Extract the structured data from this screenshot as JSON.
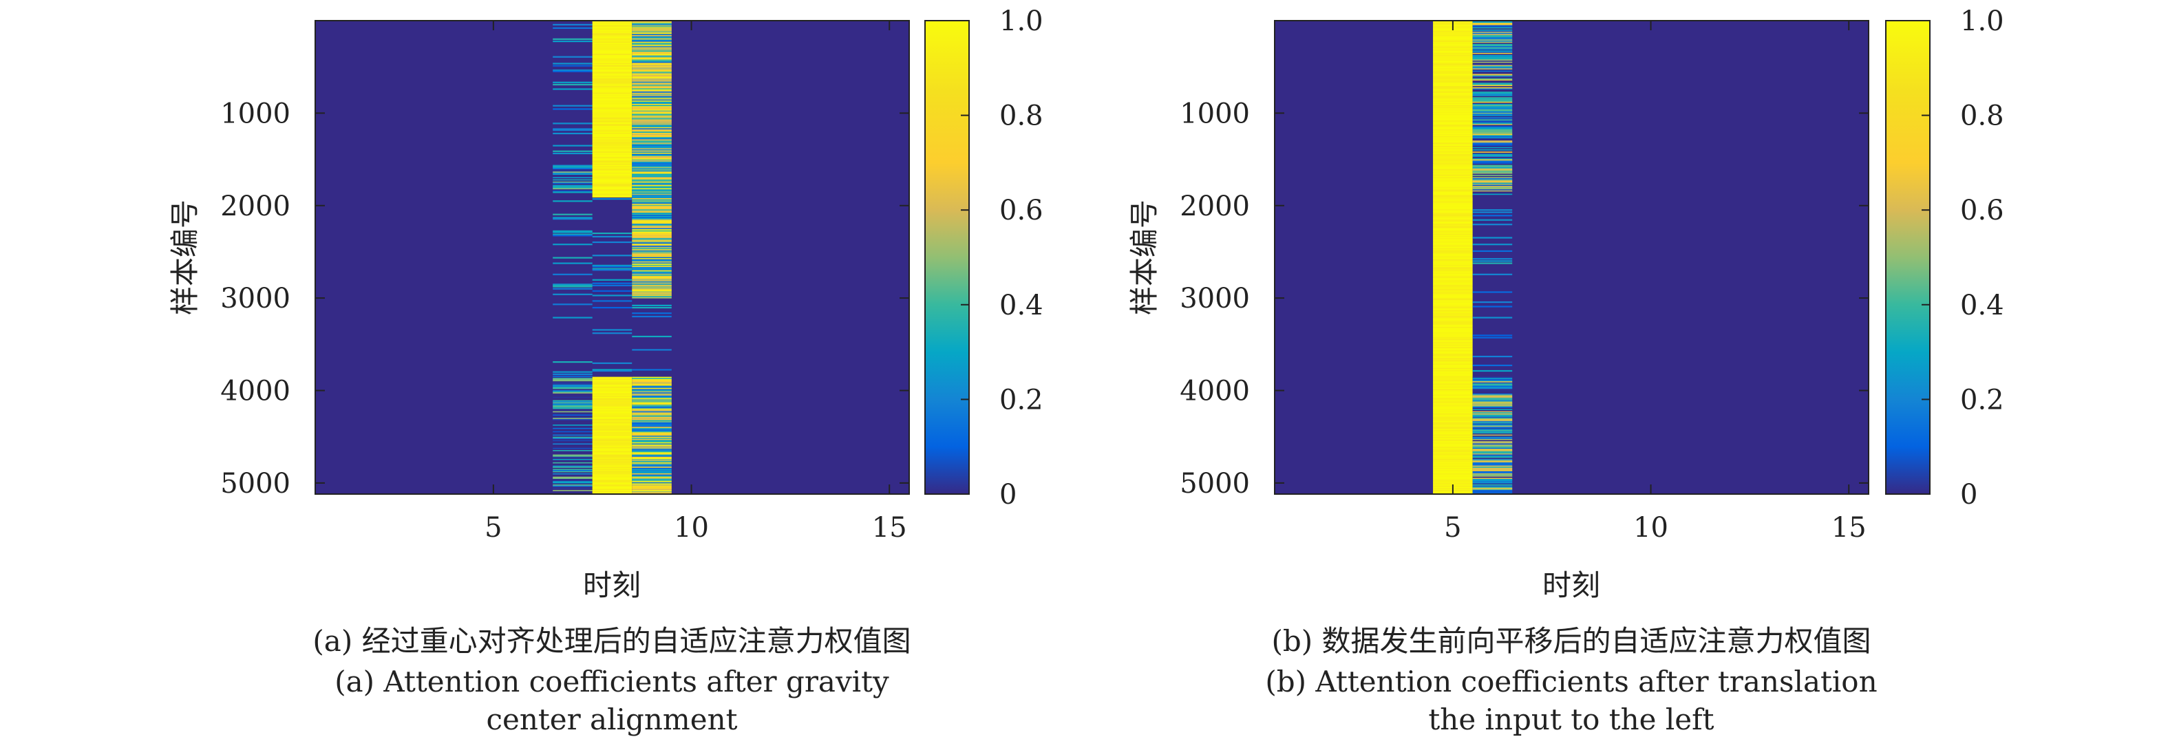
{
  "chart_data": [
    {
      "type": "heatmap",
      "xlabel": "时刻",
      "ylabel": "样本编号",
      "x_ticks": [
        5,
        10,
        15
      ],
      "y_ticks": [
        1000,
        2000,
        3000,
        4000,
        5000
      ],
      "xlim": [
        0.5,
        15.5
      ],
      "ylim": [
        0,
        5120
      ],
      "y_reversed": true,
      "colorbar": {
        "min": 0,
        "max": 1,
        "ticks": [
          "0",
          "0.2",
          "0.4",
          "0.6",
          "0.8",
          "1.0"
        ],
        "colormap": "parula"
      },
      "background_value": 0.08,
      "columns": [
        {
          "timestep": 7,
          "mean_value": 0.12,
          "dense_rows": [
            [
              3850,
              5120
            ],
            [
              1550,
              1850
            ]
          ]
        },
        {
          "timestep": 8,
          "mean_value": 0.97,
          "dense_rows": [
            [
              0,
              1900
            ],
            [
              3850,
              5120
            ]
          ]
        },
        {
          "timestep": 9,
          "mean_value": 0.55,
          "dense_rows": [
            [
              0,
              1900
            ],
            [
              1900,
              3000
            ],
            [
              3850,
              5120
            ]
          ]
        }
      ],
      "caption_zh": "(a) 经过重心对齐处理后的自适应注意力权值图",
      "caption_en": [
        "(a) Attention coefficients after gravity",
        "center alignment"
      ]
    },
    {
      "type": "heatmap",
      "xlabel": "时刻",
      "ylabel": "样本编号",
      "x_ticks": [
        5,
        10,
        15
      ],
      "y_ticks": [
        1000,
        2000,
        3000,
        4000,
        5000
      ],
      "xlim": [
        0.5,
        15.5
      ],
      "ylim": [
        0,
        5120
      ],
      "y_reversed": true,
      "colorbar": {
        "min": 0,
        "max": 1,
        "ticks": [
          "0",
          "0.2",
          "0.4",
          "0.6",
          "0.8",
          "1.0"
        ],
        "colormap": "parula"
      },
      "background_value": 0.08,
      "columns": [
        {
          "timestep": 5,
          "mean_value": 0.98,
          "dense_rows": [
            [
              0,
              5120
            ]
          ]
        },
        {
          "timestep": 6,
          "mean_value": 0.35,
          "dense_rows": [
            [
              0,
              1900
            ],
            [
              3850,
              5120
            ]
          ]
        }
      ],
      "caption_zh": "(b) 数据发生前向平移后的自适应注意力权值图",
      "caption_en": [
        "(b) Attention coefficients after translation",
        "the input to the left"
      ]
    }
  ]
}
